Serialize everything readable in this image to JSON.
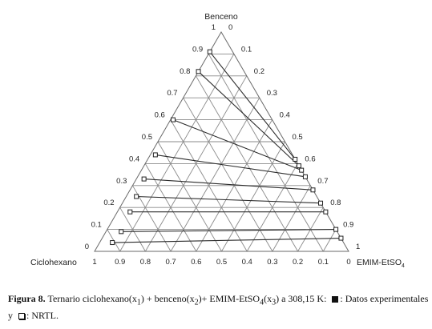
{
  "chart_data": {
    "type": "scatter",
    "subtype": "ternary",
    "vertices": {
      "top": "Benceno",
      "left": "Ciclohexano",
      "right_main": "EMIM-EtSO",
      "right_sub": "4"
    },
    "ticks": {
      "left_edge": [
        "1",
        "0.9",
        "0.8",
        "0.7",
        "0.6",
        "0.5",
        "0.4",
        "0.3",
        "0.2",
        "0.1",
        "0"
      ],
      "right_edge": [
        "0",
        "0.1",
        "0.2",
        "0.3",
        "0.4",
        "0.5",
        "0.6",
        "0.7",
        "0.8",
        "0.9",
        "1"
      ],
      "bottom_edge": [
        "1",
        "0.9",
        "0.8",
        "0.7",
        "0.6",
        "0.5",
        "0.4",
        "0.3",
        "0.2",
        "0.1",
        "0"
      ]
    },
    "grid_step": 0.1,
    "tie_lines": [
      {
        "raffinate": {
          "x1": 0.09,
          "x2": 0.91
        },
        "extract": {
          "x1": 0.0,
          "x2": 0.42
        }
      },
      {
        "raffinate": {
          "x1": 0.18,
          "x2": 0.82
        },
        "extract": {
          "x1": 0.0,
          "x2": 0.39
        }
      },
      {
        "raffinate": {
          "x1": 0.39,
          "x2": 0.6
        },
        "extract": {
          "x1": 0.0,
          "x2": 0.37
        }
      },
      {
        "raffinate": {
          "x1": 0.54,
          "x2": 0.44
        },
        "extract": {
          "x1": 0.0,
          "x2": 0.34
        }
      },
      {
        "raffinate": {
          "x1": 0.64,
          "x2": 0.33
        },
        "extract": {
          "x1": 0.0,
          "x2": 0.28
        }
      },
      {
        "raffinate": {
          "x1": 0.71,
          "x2": 0.25
        },
        "extract": {
          "x1": 0.0,
          "x2": 0.22
        }
      },
      {
        "raffinate": {
          "x1": 0.77,
          "x2": 0.18
        },
        "extract": {
          "x1": 0.0,
          "x2": 0.18
        }
      },
      {
        "raffinate": {
          "x1": 0.85,
          "x2": 0.09
        },
        "extract": {
          "x1": 0.0,
          "x2": 0.1
        }
      },
      {
        "raffinate": {
          "x1": 0.91,
          "x2": 0.04
        },
        "extract": {
          "x1": 0.0,
          "x2": 0.06
        }
      }
    ],
    "grid": true
  },
  "caption": {
    "label": "Figura 8.",
    "parts": [
      " Ternario ciclohexano(x",
      "1",
      ") + benceno(x",
      "2",
      ")+ EMIM-EtSO",
      "4",
      "(x",
      "3",
      ") a 308,15 K: ",
      ": Datos experimentales y ",
      ": NRTL."
    ]
  }
}
